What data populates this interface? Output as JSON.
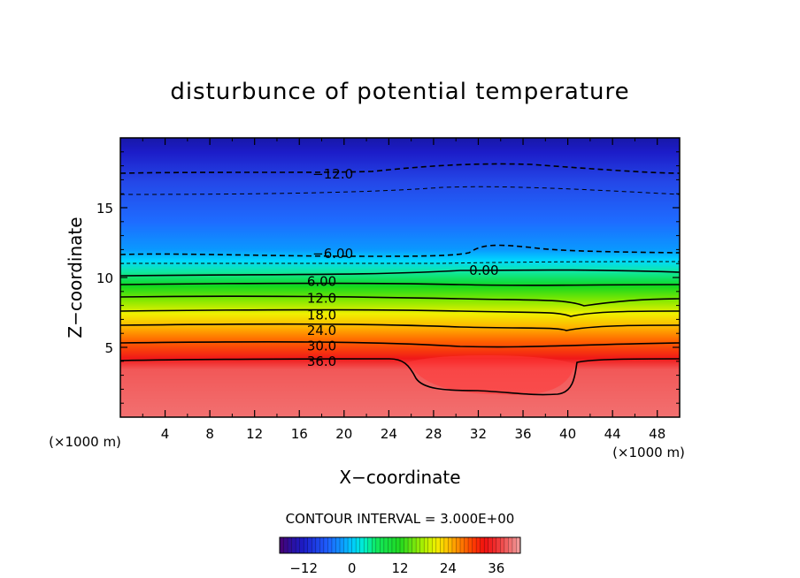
{
  "chart_data": {
    "type": "contour",
    "title": "disturbunce of potential temperature",
    "xlabel": "X−coordinate",
    "ylabel": "Z−coordinate",
    "x_unit": "(×1000 m)",
    "xlim": [
      0,
      50
    ],
    "ylim": [
      0,
      20
    ],
    "x_ticks": [
      "4",
      "8",
      "12",
      "16",
      "20",
      "24",
      "28",
      "32",
      "36",
      "40",
      "44",
      "48"
    ],
    "y_ticks": [
      "5",
      "10",
      "15"
    ],
    "contour_interval_text": "CONTOUR INTERVAL = 3.000E+00",
    "contour_interval": 3.0,
    "contour_labels": [
      {
        "text": "−12.0",
        "x": 19,
        "z": 17.4
      },
      {
        "text": "−6.00",
        "x": 19,
        "z": 11.7
      },
      {
        "text": "0.00",
        "x": 32.5,
        "z": 10.5
      },
      {
        "text": "6.00",
        "x": 18,
        "z": 9.7
      },
      {
        "text": "12.0",
        "x": 18,
        "z": 8.5
      },
      {
        "text": "18.0",
        "x": 18,
        "z": 7.3
      },
      {
        "text": "24.0",
        "x": 18,
        "z": 6.2
      },
      {
        "text": "30.0",
        "x": 18,
        "z": 5.1
      },
      {
        "text": "36.0",
        "x": 18,
        "z": 4.0
      }
    ],
    "colorbar": {
      "min": -18,
      "max": 42,
      "ticks": [
        "−12",
        "0",
        "12",
        "24",
        "36"
      ],
      "tick_values": [
        -12,
        0,
        12,
        24,
        36
      ]
    },
    "colors": [
      "#5a0a8c",
      "#2020d0",
      "#1e88ff",
      "#00d8ff",
      "#20d860",
      "#d8ff00",
      "#ffb000",
      "#ff2010",
      "#f07070"
    ]
  }
}
